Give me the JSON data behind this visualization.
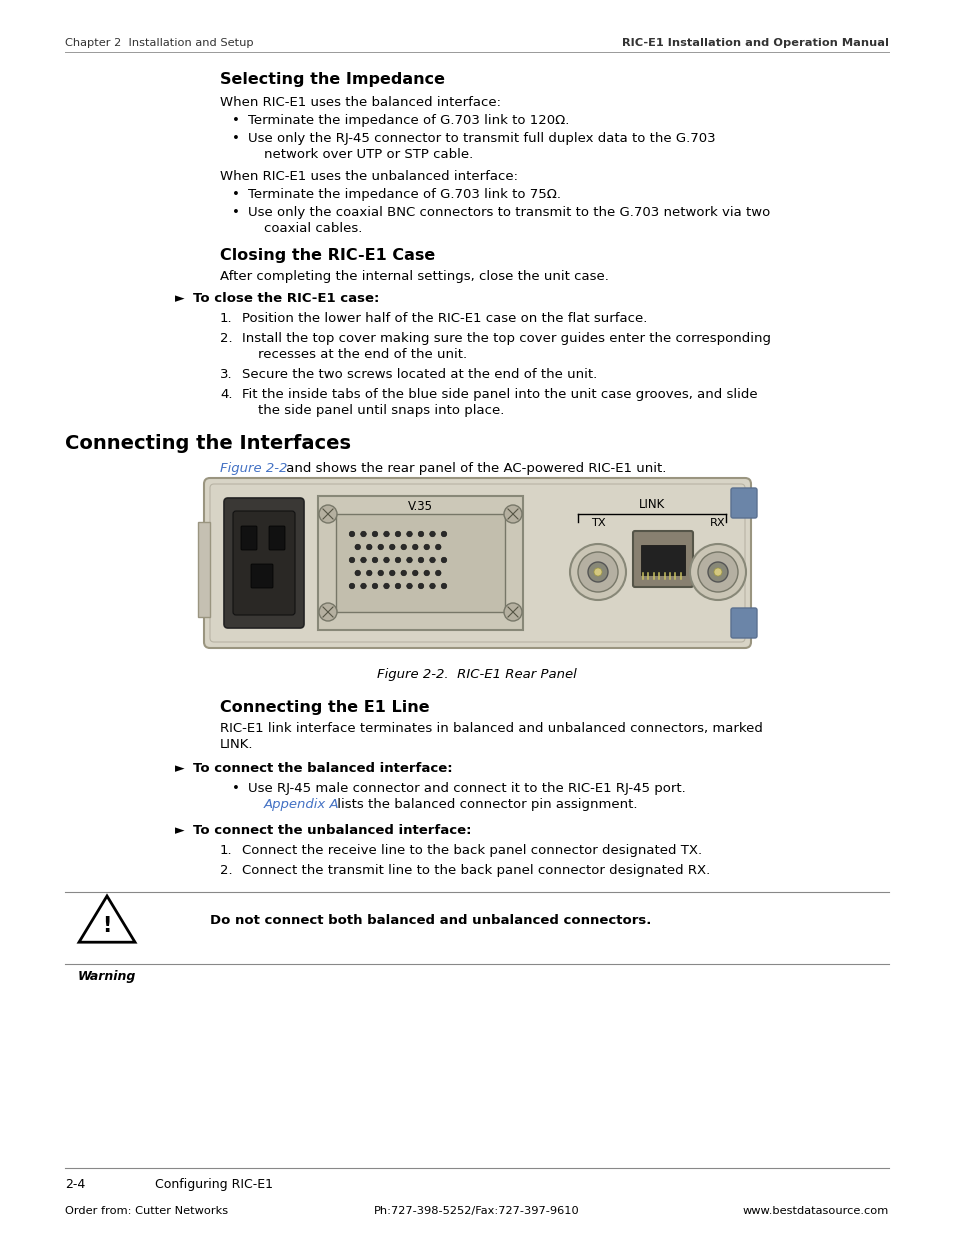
{
  "bg_color": "#ffffff",
  "header_left": "Chapter 2  Installation and Setup",
  "header_right": "RIC-E1 Installation and Operation Manual",
  "footer_page": "2-4",
  "footer_section": "Configuring RIC-E1",
  "footer_left": "Order from: Cutter Networks",
  "footer_center": "Ph:727-398-5252/Fax:727-397-9610",
  "footer_right": "www.bestdatasource.com",
  "section1_title": "Selecting the Impedance",
  "section2_title": "Closing the RIC-E1 Case",
  "section3_title": "Connecting the Interfaces",
  "section3_intro_ref": "Figure 2-2",
  "section3_intro_rest": " and shows the rear panel of the AC-powered RIC-E1 unit.",
  "figure_caption": "Figure 2-2.  RIC-E1 Rear Panel",
  "section4_title": "Connecting the E1 Line",
  "warning_text": "Do not connect both balanced and unbalanced connectors.",
  "warning_label": "Warning",
  "text_color": "#000000",
  "link_color": "#4472c4",
  "panel_bg": "#d8d3c4",
  "panel_border": "#9a9580",
  "blue_accent": "#6080a8"
}
